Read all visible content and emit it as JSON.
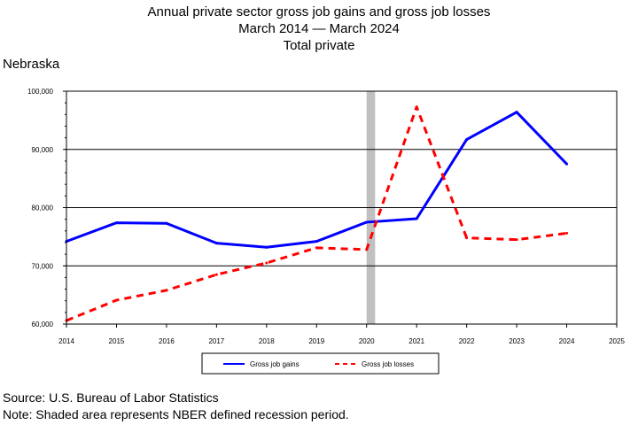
{
  "header": {
    "title": "Annual private sector gross job gains and gross job losses",
    "subtitle": "March 2014 — March 2024",
    "series_title": "Total private",
    "region": "Nebraska"
  },
  "footer": {
    "source": "Source: U.S. Bureau of Labor Statistics",
    "note": "Note: Shaded area represents NBER defined recession period."
  },
  "chart_data": {
    "type": "line",
    "title": "Annual private sector gross job gains and gross job losses",
    "x": [
      2014,
      2015,
      2016,
      2017,
      2018,
      2019,
      2020,
      2021,
      2022,
      2023,
      2024
    ],
    "xlim": [
      2014,
      2025
    ],
    "xticks": [
      "2014",
      "2015",
      "2016",
      "2017",
      "2018",
      "2019",
      "2020",
      "2021",
      "2022",
      "2023",
      "2024",
      "2025"
    ],
    "ylim": [
      60000,
      100000
    ],
    "yticks": [
      60000,
      70000,
      80000,
      90000,
      100000
    ],
    "ytick_labels": [
      "60,000",
      "70,000",
      "80,000",
      "90,000",
      "100,000"
    ],
    "grid": "horizontal",
    "recession_shading": [
      2020.0,
      2020.17
    ],
    "recession_color": "#c0c0c0",
    "legend_position": "bottom",
    "series": [
      {
        "name": "Gross job gains",
        "color": "#0000ff",
        "style": "solid",
        "values": [
          74200,
          77400,
          77300,
          73900,
          73200,
          74200,
          77500,
          78100,
          91700,
          96400,
          87500
        ]
      },
      {
        "name": "Gross job losses",
        "color": "#ff0000",
        "style": "dashed",
        "values": [
          60600,
          64100,
          65800,
          68500,
          70500,
          73100,
          72800,
          97300,
          74800,
          74500,
          75600
        ]
      }
    ]
  }
}
